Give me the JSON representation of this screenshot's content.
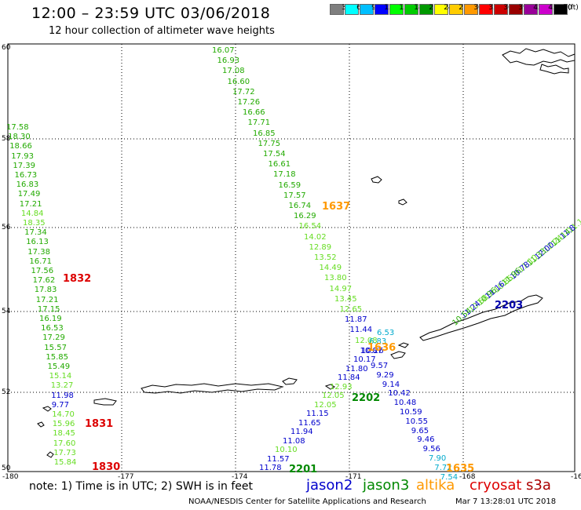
{
  "header": {
    "title": "12:00 – 23:59 UTC 03/06/2018",
    "subtitle": "12 hour collection of altimeter wave heights"
  },
  "legend": {
    "unit": "(ft)",
    "bins": [
      {
        "label": "3",
        "color": "#7f7f7f"
      },
      {
        "label": "6",
        "color": "#00ffff"
      },
      {
        "label": "9",
        "color": "#00bfff"
      },
      {
        "label": "12",
        "color": "#0000ff"
      },
      {
        "label": "15",
        "color": "#00ff00"
      },
      {
        "label": "18",
        "color": "#00cc00"
      },
      {
        "label": "21",
        "color": "#009900"
      },
      {
        "label": "24",
        "color": "#ffff00"
      },
      {
        "label": "27",
        "color": "#ffcc00"
      },
      {
        "label": "30",
        "color": "#ff9900"
      },
      {
        "label": "33",
        "color": "#ff0000"
      },
      {
        "label": "36",
        "color": "#cc0000"
      },
      {
        "label": "39",
        "color": "#990000"
      },
      {
        "label": "42",
        "color": "#990099"
      },
      {
        "label": "45",
        "color": "#cc00cc"
      },
      {
        "label": "70",
        "color": "#000000"
      }
    ]
  },
  "axes": {
    "lat_labels": [
      "60",
      "58",
      "56",
      "54",
      "52",
      "50"
    ],
    "lon_labels": [
      "-180",
      "-177",
      "-174",
      "-171",
      "-168",
      "-16"
    ]
  },
  "tracks": {
    "track_1830_1832": {
      "color_dark": "#22aa00",
      "color_light": "#66dd22",
      "values": [
        "17.58",
        "18.30",
        "18.66",
        "17.93",
        "17.39",
        "16.73",
        "16.83",
        "17.49",
        "17.21",
        "14.84",
        "18.35",
        "17.34",
        "16.13",
        "17.38",
        "16.71",
        "17.56",
        "17.62",
        "17.83",
        "17.21",
        "17.15",
        "16.19",
        "16.53",
        "17.29",
        "15.57",
        "15.85",
        "15.49",
        "15.14",
        "13.27",
        "11.98",
        "9.77",
        "14.70",
        "15.96",
        "18.45",
        "17.60",
        "17.73",
        "15.84"
      ]
    },
    "track_1637_1636": {
      "values": [
        "16.07",
        "16.93",
        "17.08",
        "16.60",
        "17.72",
        "17.26",
        "16.66",
        "17.71",
        "16.85",
        "17.75",
        "17.54",
        "16.61",
        "17.18",
        "16.59",
        "17.57",
        "16.74",
        "16.29",
        "16.54",
        "14.02",
        "12.89",
        "13.52",
        "14.49",
        "13.80",
        "14.97",
        "13.45",
        "12.65",
        "11.87",
        "11.44",
        "12.08",
        "10.87",
        "9.57",
        "9.29",
        "9.14",
        "10.42",
        "10.48",
        "10.59",
        "10.55",
        "9.65",
        "9.46",
        "9.56",
        "7.90",
        "7.72",
        "7.54"
      ]
    },
    "track_2201_2202": {
      "values": [
        "11.78",
        "11.57",
        "10.10",
        "11.08",
        "11.94",
        "11.65",
        "11.15",
        "12.05",
        "12.05",
        "12.93",
        "11.84",
        "11.80",
        "10.17",
        "10.26",
        "6.83",
        "6.53"
      ]
    },
    "track_2203": {
      "values": [
        "11.1",
        "11.8",
        "11.14",
        "12.24",
        "12.00",
        "11.33",
        "11.10",
        "10.78",
        "11.96",
        "10.85",
        "11.16",
        "10.96",
        "10.68",
        "11.24",
        "10.54"
      ]
    }
  },
  "time_labels": [
    {
      "text": "1832",
      "color": "#dd0000"
    },
    {
      "text": "1831",
      "color": "#dd0000"
    },
    {
      "text": "1830",
      "color": "#dd0000"
    },
    {
      "text": "1637",
      "color": "#ff9900"
    },
    {
      "text": "1636",
      "color": "#ff9900"
    },
    {
      "text": "1635",
      "color": "#ff9900"
    },
    {
      "text": "2201",
      "color": "#008800"
    },
    {
      "text": "2202",
      "color": "#008800"
    },
    {
      "text": "2203",
      "color": "#0000aa"
    }
  ],
  "footer": {
    "note": "note:  1) Time is in UTC;  2) SWH is in feet",
    "satellites": [
      {
        "name": "jason2",
        "color": "#0000cc"
      },
      {
        "name": "jason3",
        "color": "#008800"
      },
      {
        "name": "altika",
        "color": "#ff9900"
      },
      {
        "name": "cryosat",
        "color": "#dd0000"
      },
      {
        "name": "s3a",
        "color": "#aa0000"
      }
    ],
    "credit": "NOAA/NESDIS Center for Satellite Applications and Research",
    "timestamp": "Mar  7 13:28:01 UTC 2018"
  }
}
